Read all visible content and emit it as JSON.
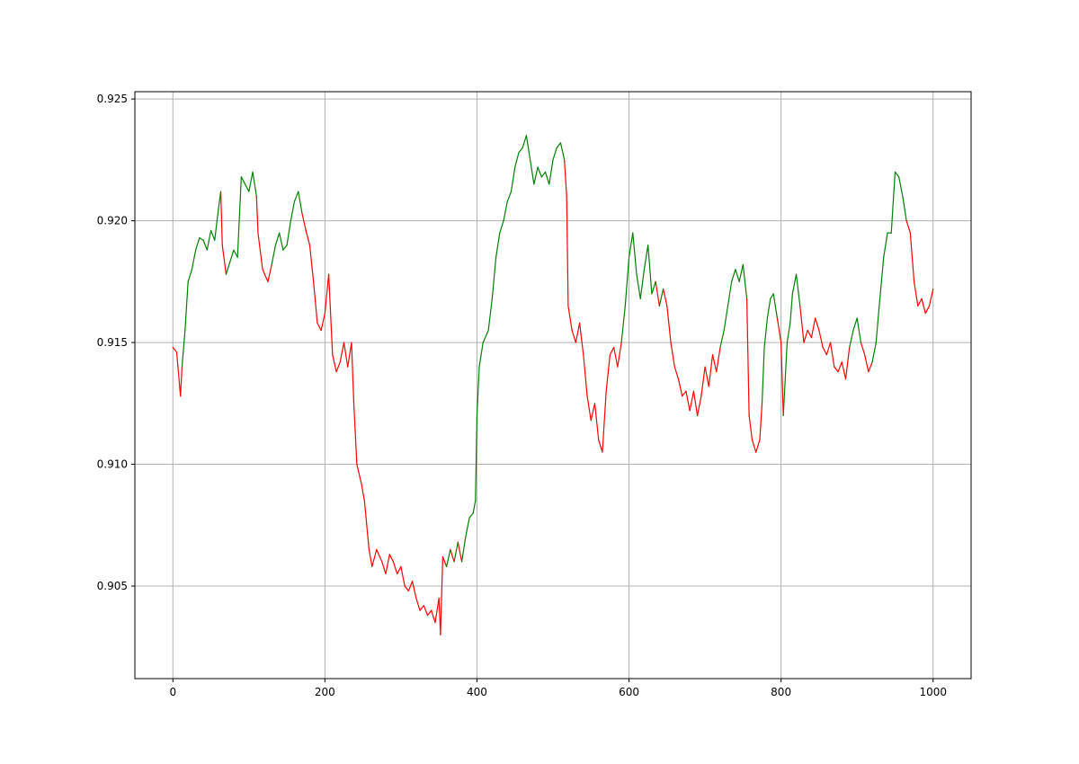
{
  "chart_data": {
    "type": "line",
    "title": "",
    "xlabel": "",
    "ylabel": "",
    "xlim": [
      -50,
      1050
    ],
    "ylim": [
      0.9012,
      0.9253
    ],
    "grid": true,
    "x_ticks": [
      0,
      200,
      400,
      600,
      800,
      1000
    ],
    "x_tick_labels": [
      "0",
      "200",
      "400",
      "600",
      "800",
      "1000"
    ],
    "y_ticks": [
      0.905,
      0.91,
      0.915,
      0.92,
      0.925
    ],
    "y_tick_labels": [
      "0.905",
      "0.910",
      "0.915",
      "0.920",
      "0.925"
    ],
    "colors": {
      "up": "#008000",
      "down": "#ff0000",
      "grid": "#b0b0b0"
    },
    "series": [
      {
        "values": [
          [
            0,
            0.9148,
            "down"
          ],
          [
            5,
            0.9146,
            "down"
          ],
          [
            10,
            0.9128,
            "down"
          ],
          [
            12,
            0.914,
            "down"
          ],
          [
            16,
            0.9155,
            "up"
          ],
          [
            20,
            0.9175,
            "up"
          ],
          [
            25,
            0.918,
            "up"
          ],
          [
            30,
            0.9188,
            "up"
          ],
          [
            35,
            0.9193,
            "up"
          ],
          [
            40,
            0.9192,
            "up"
          ],
          [
            45,
            0.9188,
            "up"
          ],
          [
            50,
            0.9196,
            "up"
          ],
          [
            55,
            0.9192,
            "up"
          ],
          [
            60,
            0.9205,
            "up"
          ],
          [
            63,
            0.9212,
            "up"
          ],
          [
            65,
            0.919,
            "down"
          ],
          [
            70,
            0.9178,
            "down"
          ],
          [
            75,
            0.9183,
            "up"
          ],
          [
            80,
            0.9188,
            "up"
          ],
          [
            85,
            0.9185,
            "up"
          ],
          [
            90,
            0.9218,
            "up"
          ],
          [
            95,
            0.9215,
            "up"
          ],
          [
            100,
            0.9212,
            "up"
          ],
          [
            105,
            0.922,
            "up"
          ],
          [
            110,
            0.921,
            "up"
          ],
          [
            112,
            0.9195,
            "down"
          ],
          [
            118,
            0.918,
            "down"
          ],
          [
            125,
            0.9175,
            "down"
          ],
          [
            130,
            0.9182,
            "down"
          ],
          [
            135,
            0.919,
            "up"
          ],
          [
            140,
            0.9195,
            "up"
          ],
          [
            145,
            0.9188,
            "up"
          ],
          [
            150,
            0.919,
            "up"
          ],
          [
            155,
            0.92,
            "up"
          ],
          [
            160,
            0.9208,
            "up"
          ],
          [
            165,
            0.9212,
            "up"
          ],
          [
            170,
            0.9203,
            "up"
          ],
          [
            175,
            0.9196,
            "down"
          ],
          [
            180,
            0.919,
            "down"
          ],
          [
            185,
            0.9175,
            "down"
          ],
          [
            190,
            0.9158,
            "down"
          ],
          [
            195,
            0.9155,
            "down"
          ],
          [
            200,
            0.9162,
            "down"
          ],
          [
            205,
            0.9178,
            "down"
          ],
          [
            210,
            0.9145,
            "down"
          ],
          [
            215,
            0.9138,
            "down"
          ],
          [
            220,
            0.9142,
            "down"
          ],
          [
            225,
            0.915,
            "down"
          ],
          [
            230,
            0.914,
            "down"
          ],
          [
            235,
            0.915,
            "down"
          ],
          [
            238,
            0.9125,
            "down"
          ],
          [
            242,
            0.91,
            "down"
          ],
          [
            248,
            0.9092,
            "down"
          ],
          [
            252,
            0.9085,
            "down"
          ],
          [
            258,
            0.9065,
            "down"
          ],
          [
            262,
            0.9058,
            "down"
          ],
          [
            268,
            0.9065,
            "down"
          ],
          [
            275,
            0.906,
            "down"
          ],
          [
            280,
            0.9055,
            "down"
          ],
          [
            285,
            0.9063,
            "down"
          ],
          [
            290,
            0.906,
            "down"
          ],
          [
            295,
            0.9055,
            "down"
          ],
          [
            300,
            0.9058,
            "down"
          ],
          [
            305,
            0.905,
            "down"
          ],
          [
            310,
            0.9048,
            "down"
          ],
          [
            315,
            0.9052,
            "down"
          ],
          [
            320,
            0.9045,
            "down"
          ],
          [
            325,
            0.904,
            "down"
          ],
          [
            330,
            0.9042,
            "down"
          ],
          [
            335,
            0.9038,
            "down"
          ],
          [
            340,
            0.904,
            "down"
          ],
          [
            345,
            0.9035,
            "down"
          ],
          [
            350,
            0.9045,
            "down"
          ],
          [
            352,
            0.903,
            "down"
          ],
          [
            355,
            0.9062,
            "down"
          ],
          [
            360,
            0.9058,
            "down"
          ],
          [
            365,
            0.9065,
            "up"
          ],
          [
            370,
            0.906,
            "down"
          ],
          [
            375,
            0.9068,
            "up"
          ],
          [
            380,
            0.906,
            "down"
          ],
          [
            385,
            0.907,
            "up"
          ],
          [
            390,
            0.9078,
            "up"
          ],
          [
            395,
            0.908,
            "up"
          ],
          [
            398,
            0.9085,
            "up"
          ],
          [
            400,
            0.912,
            "up"
          ],
          [
            403,
            0.914,
            "up"
          ],
          [
            408,
            0.915,
            "up"
          ],
          [
            415,
            0.9155,
            "up"
          ],
          [
            420,
            0.9168,
            "up"
          ],
          [
            425,
            0.9185,
            "up"
          ],
          [
            430,
            0.9195,
            "up"
          ],
          [
            435,
            0.92,
            "up"
          ],
          [
            440,
            0.9208,
            "up"
          ],
          [
            445,
            0.9212,
            "up"
          ],
          [
            450,
            0.9222,
            "up"
          ],
          [
            455,
            0.9228,
            "up"
          ],
          [
            460,
            0.923,
            "up"
          ],
          [
            465,
            0.9235,
            "up"
          ],
          [
            470,
            0.9225,
            "up"
          ],
          [
            475,
            0.9215,
            "up"
          ],
          [
            480,
            0.9222,
            "up"
          ],
          [
            485,
            0.9218,
            "up"
          ],
          [
            490,
            0.922,
            "up"
          ],
          [
            495,
            0.9215,
            "up"
          ],
          [
            500,
            0.9225,
            "up"
          ],
          [
            505,
            0.923,
            "up"
          ],
          [
            510,
            0.9232,
            "up"
          ],
          [
            515,
            0.9225,
            "up"
          ],
          [
            518,
            0.921,
            "down"
          ],
          [
            520,
            0.9165,
            "down"
          ],
          [
            525,
            0.9155,
            "down"
          ],
          [
            530,
            0.915,
            "down"
          ],
          [
            535,
            0.9158,
            "down"
          ],
          [
            540,
            0.9145,
            "down"
          ],
          [
            545,
            0.9128,
            "down"
          ],
          [
            550,
            0.9118,
            "down"
          ],
          [
            555,
            0.9125,
            "down"
          ],
          [
            560,
            0.911,
            "down"
          ],
          [
            565,
            0.9105,
            "down"
          ],
          [
            570,
            0.913,
            "down"
          ],
          [
            575,
            0.9145,
            "down"
          ],
          [
            580,
            0.9148,
            "down"
          ],
          [
            585,
            0.914,
            "down"
          ],
          [
            590,
            0.915,
            "down"
          ],
          [
            595,
            0.9165,
            "up"
          ],
          [
            600,
            0.9185,
            "up"
          ],
          [
            605,
            0.9195,
            "up"
          ],
          [
            610,
            0.9178,
            "up"
          ],
          [
            615,
            0.9168,
            "up"
          ],
          [
            620,
            0.918,
            "up"
          ],
          [
            625,
            0.919,
            "up"
          ],
          [
            630,
            0.917,
            "up"
          ],
          [
            635,
            0.9175,
            "up"
          ],
          [
            640,
            0.9165,
            "down"
          ],
          [
            645,
            0.9172,
            "up"
          ],
          [
            650,
            0.9165,
            "down"
          ],
          [
            655,
            0.915,
            "down"
          ],
          [
            660,
            0.914,
            "down"
          ],
          [
            665,
            0.9135,
            "down"
          ],
          [
            670,
            0.9128,
            "down"
          ],
          [
            675,
            0.913,
            "down"
          ],
          [
            680,
            0.9122,
            "down"
          ],
          [
            685,
            0.913,
            "down"
          ],
          [
            690,
            0.912,
            "down"
          ],
          [
            695,
            0.9128,
            "down"
          ],
          [
            700,
            0.914,
            "down"
          ],
          [
            705,
            0.9132,
            "down"
          ],
          [
            710,
            0.9145,
            "down"
          ],
          [
            715,
            0.9138,
            "down"
          ],
          [
            720,
            0.9148,
            "down"
          ],
          [
            725,
            0.9155,
            "up"
          ],
          [
            730,
            0.9165,
            "up"
          ],
          [
            735,
            0.9175,
            "up"
          ],
          [
            740,
            0.918,
            "up"
          ],
          [
            745,
            0.9175,
            "up"
          ],
          [
            750,
            0.9182,
            "up"
          ],
          [
            755,
            0.9168,
            "up"
          ],
          [
            758,
            0.912,
            "down"
          ],
          [
            762,
            0.911,
            "down"
          ],
          [
            767,
            0.9105,
            "down"
          ],
          [
            772,
            0.911,
            "down"
          ],
          [
            775,
            0.9125,
            "down"
          ],
          [
            778,
            0.9148,
            "up"
          ],
          [
            782,
            0.916,
            "up"
          ],
          [
            786,
            0.9168,
            "up"
          ],
          [
            790,
            0.917,
            "up"
          ],
          [
            795,
            0.916,
            "up"
          ],
          [
            800,
            0.915,
            "down"
          ],
          [
            803,
            0.912,
            "down"
          ],
          [
            808,
            0.915,
            "up"
          ],
          [
            812,
            0.9158,
            "up"
          ],
          [
            815,
            0.917,
            "up"
          ],
          [
            820,
            0.9178,
            "up"
          ],
          [
            825,
            0.9165,
            "up"
          ],
          [
            830,
            0.915,
            "down"
          ],
          [
            835,
            0.9155,
            "down"
          ],
          [
            840,
            0.9152,
            "down"
          ],
          [
            845,
            0.916,
            "down"
          ],
          [
            850,
            0.9155,
            "down"
          ],
          [
            855,
            0.9148,
            "down"
          ],
          [
            860,
            0.9145,
            "down"
          ],
          [
            865,
            0.915,
            "down"
          ],
          [
            870,
            0.914,
            "down"
          ],
          [
            875,
            0.9138,
            "down"
          ],
          [
            880,
            0.9142,
            "down"
          ],
          [
            885,
            0.9135,
            "down"
          ],
          [
            890,
            0.9148,
            "down"
          ],
          [
            895,
            0.9155,
            "up"
          ],
          [
            900,
            0.916,
            "up"
          ],
          [
            905,
            0.915,
            "up"
          ],
          [
            910,
            0.9145,
            "down"
          ],
          [
            915,
            0.9138,
            "down"
          ],
          [
            920,
            0.9142,
            "down"
          ],
          [
            925,
            0.915,
            "up"
          ],
          [
            930,
            0.9168,
            "up"
          ],
          [
            935,
            0.9185,
            "up"
          ],
          [
            940,
            0.9195,
            "up"
          ],
          [
            945,
            0.9195,
            "up"
          ],
          [
            950,
            0.922,
            "up"
          ],
          [
            955,
            0.9218,
            "up"
          ],
          [
            960,
            0.921,
            "up"
          ],
          [
            965,
            0.92,
            "up"
          ],
          [
            970,
            0.9195,
            "down"
          ],
          [
            975,
            0.9175,
            "down"
          ],
          [
            980,
            0.9165,
            "down"
          ],
          [
            985,
            0.9168,
            "down"
          ],
          [
            990,
            0.9162,
            "down"
          ],
          [
            995,
            0.9165,
            "down"
          ],
          [
            1000,
            0.9172,
            "down"
          ]
        ]
      }
    ]
  }
}
